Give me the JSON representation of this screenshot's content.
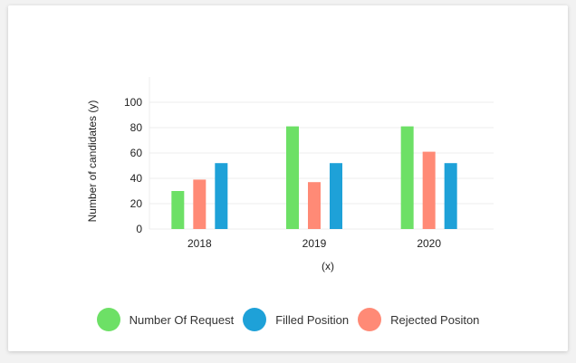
{
  "chart_data": {
    "type": "bar",
    "title": "",
    "xlabel": "(x)",
    "ylabel": "Number of candidates (y)",
    "categories": [
      "2018",
      "2019",
      "2020"
    ],
    "ylim": [
      0,
      120
    ],
    "yticks": [
      0,
      20,
      40,
      60,
      80,
      100
    ],
    "grid": true,
    "legend_position": "bottom",
    "series": [
      {
        "name": "Number Of Request",
        "color": "#6de066",
        "values": [
          30,
          81,
          81
        ]
      },
      {
        "name": "Rejected Positon",
        "color": "#ff8a76",
        "values": [
          39,
          37,
          61
        ]
      },
      {
        "name": "Filled Position",
        "color": "#1ea1d8",
        "values": [
          52,
          52,
          52
        ]
      }
    ],
    "legend": [
      {
        "name": "Number Of Request",
        "color": "#6de066"
      },
      {
        "name": "Filled Position",
        "color": "#1ea1d8"
      },
      {
        "name": "Rejected Positon",
        "color": "#ff8a76"
      }
    ]
  }
}
